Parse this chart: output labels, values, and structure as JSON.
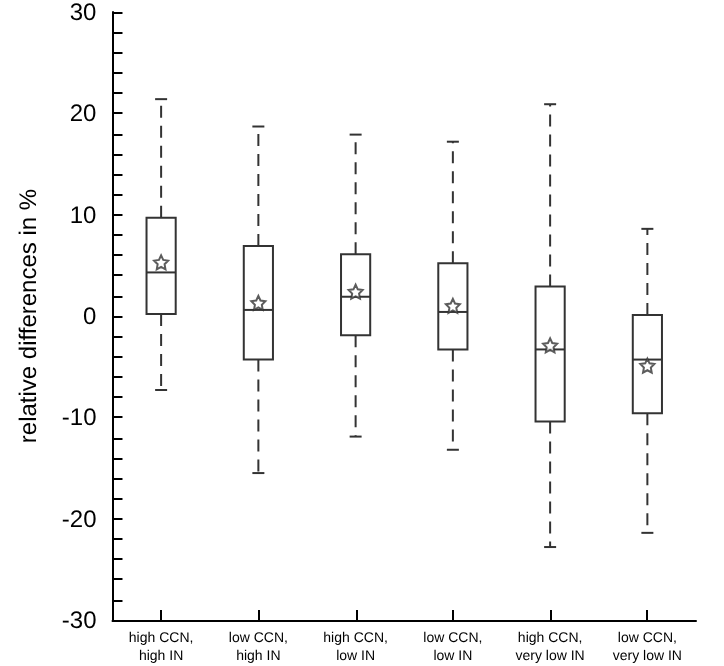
{
  "chart_data": {
    "type": "box",
    "ylabel": "relative differences in %",
    "categories": [
      "high CCN,\nhigh IN",
      "low CCN,\nhigh IN",
      "high CCN,\nlow IN",
      "low CCN,\nlow IN",
      "high CCN,\nvery low IN",
      "low CCN,\nvery low IN"
    ],
    "boxes": [
      {
        "low": -7.3,
        "q1": 0.2,
        "median": 4.3,
        "q3": 9.7,
        "high": 21.4,
        "mean": 5.3
      },
      {
        "low": -15.5,
        "q1": -4.3,
        "median": 0.6,
        "q3": 6.9,
        "high": 18.7,
        "mean": 1.3
      },
      {
        "low": -11.9,
        "q1": -1.9,
        "median": 1.9,
        "q3": 6.1,
        "high": 17.9,
        "mean": 2.4
      },
      {
        "low": -13.2,
        "q1": -3.3,
        "median": 0.4,
        "q3": 5.2,
        "high": 17.2,
        "mean": 1.0
      },
      {
        "low": -22.8,
        "q1": -10.4,
        "median": -3.3,
        "q3": 2.9,
        "high": 20.9,
        "mean": -2.9
      },
      {
        "low": -21.4,
        "q1": -9.6,
        "median": -4.3,
        "q3": 0.1,
        "high": 8.6,
        "mean": -4.9
      }
    ],
    "color": "#333333",
    "marker": "star",
    "line_style": "dashed",
    "ylim": [
      -30,
      30
    ],
    "yticks": [
      -30,
      {
        "value": -28,
        "label": null
      },
      {
        "value": -26,
        "label": null
      },
      {
        "value": -24,
        "label": null
      },
      {
        "value": -22,
        "label": null
      },
      -20,
      {
        "value": -18,
        "label": null
      },
      {
        "value": -16,
        "label": null
      },
      {
        "value": -14,
        "label": null
      },
      {
        "value": -12,
        "label": null
      },
      -10,
      {
        "value": -8,
        "label": null
      },
      {
        "value": -6,
        "label": null
      },
      {
        "value": -4,
        "label": null
      },
      {
        "value": -2,
        "label": null
      },
      0,
      {
        "value": 2,
        "label": null
      },
      {
        "value": 4,
        "label": null
      },
      {
        "value": 6,
        "label": null
      },
      {
        "value": 8,
        "label": null
      },
      10,
      {
        "value": 12,
        "label": null
      },
      {
        "value": 14,
        "label": null
      },
      {
        "value": 16,
        "label": null
      },
      {
        "value": 18,
        "label": null
      },
      20,
      {
        "value": 22,
        "label": null
      },
      {
        "value": 24,
        "label": null
      },
      {
        "value": 26,
        "label": null
      },
      {
        "value": 28,
        "label": null
      },
      30
    ],
    "grid": false
  }
}
